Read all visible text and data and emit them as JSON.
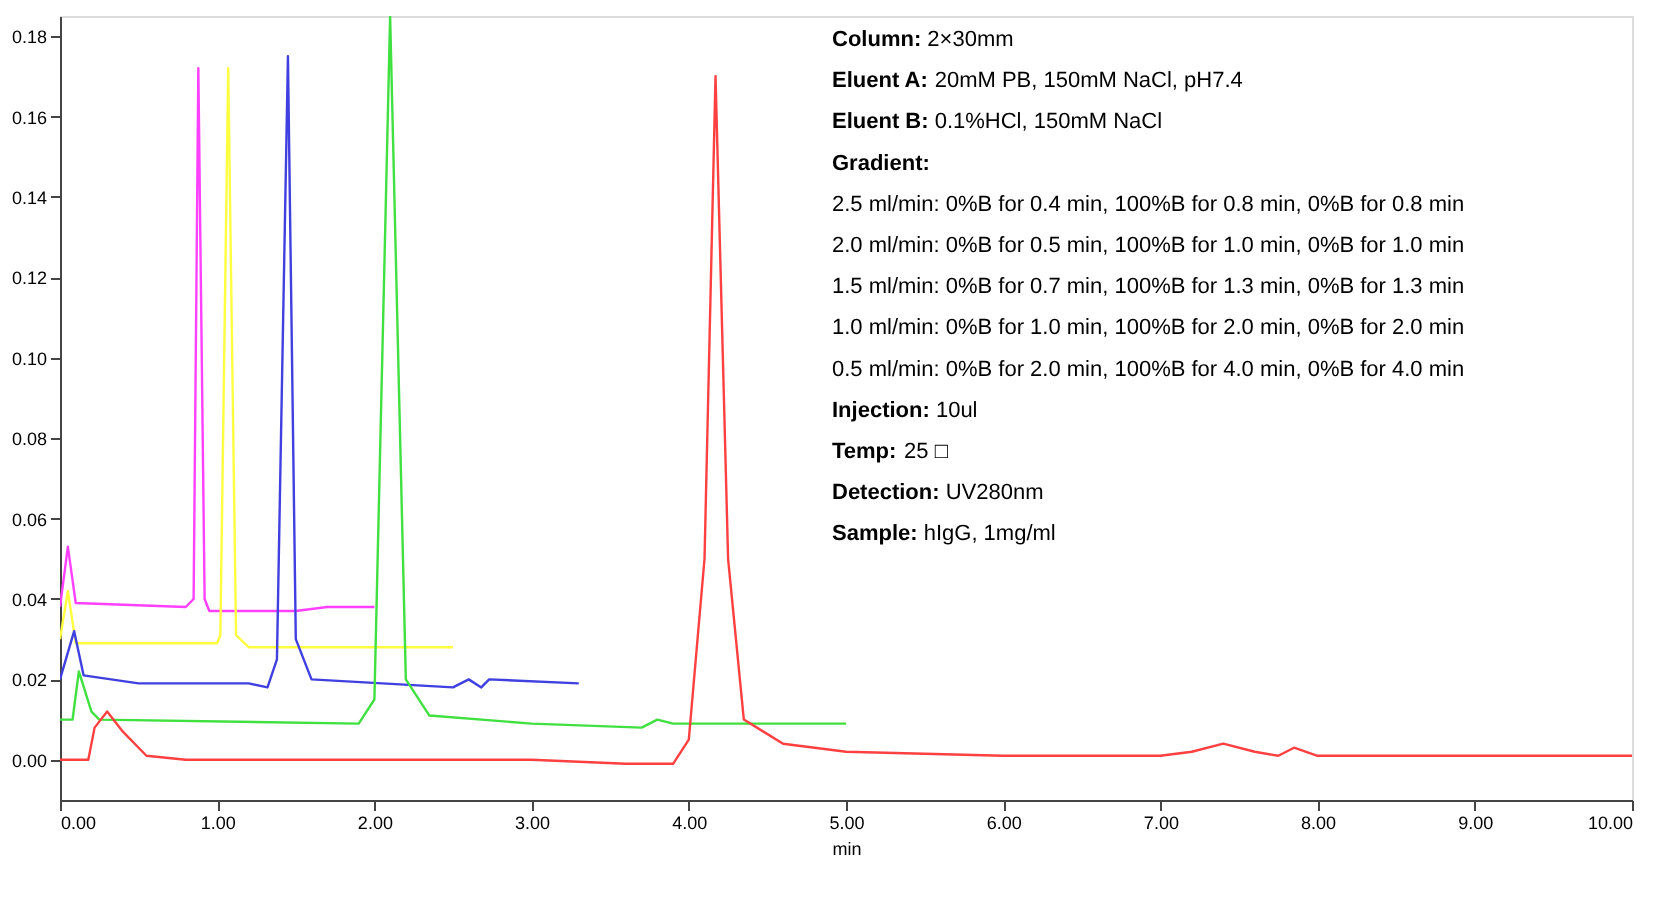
{
  "chart_data": {
    "type": "line",
    "xlabel": "min",
    "xlim": [
      0,
      10
    ],
    "ylim": [
      -0.01,
      0.185
    ],
    "xticks": [
      {
        "value": 0,
        "label": "0.00"
      },
      {
        "value": 1,
        "label": "1.00"
      },
      {
        "value": 2,
        "label": "2.00"
      },
      {
        "value": 3,
        "label": "3.00"
      },
      {
        "value": 4,
        "label": "4.00"
      },
      {
        "value": 5,
        "label": "5.00"
      },
      {
        "value": 6,
        "label": "6.00"
      },
      {
        "value": 7,
        "label": "7.00"
      },
      {
        "value": 8,
        "label": "8.00"
      },
      {
        "value": 9,
        "label": "9.00"
      },
      {
        "value": 10,
        "label": "10.00"
      }
    ],
    "yticks": [
      {
        "value": 0,
        "label": "0.00"
      },
      {
        "value": 0.02,
        "label": "0.02"
      },
      {
        "value": 0.04,
        "label": "0.04"
      },
      {
        "value": 0.06,
        "label": "0.06"
      },
      {
        "value": 0.08,
        "label": "0.08"
      },
      {
        "value": 0.1,
        "label": "0.10"
      },
      {
        "value": 0.12,
        "label": "0.12"
      },
      {
        "value": 0.14,
        "label": "0.14"
      },
      {
        "value": 0.16,
        "label": "0.16"
      },
      {
        "value": 0.18,
        "label": "0.18"
      }
    ],
    "grid": false,
    "marker": "none",
    "line_style": "solid",
    "series": [
      {
        "color": "#ff40ff",
        "x": [
          0,
          0.05,
          0.1,
          0.8,
          0.85,
          0.88,
          0.92,
          0.95,
          1.5,
          1.7,
          2.0
        ],
        "values": [
          0.038,
          0.053,
          0.039,
          0.038,
          0.04,
          0.172,
          0.04,
          0.037,
          0.037,
          0.038,
          0.038
        ]
      },
      {
        "color": "#ffff40",
        "x": [
          0,
          0.05,
          0.1,
          1.0,
          1.02,
          1.07,
          1.12,
          1.2,
          2.5
        ],
        "values": [
          0.03,
          0.042,
          0.029,
          0.029,
          0.031,
          0.172,
          0.031,
          0.028,
          0.028
        ]
      },
      {
        "color": "#4040e0",
        "x": [
          0,
          0.09,
          0.15,
          0.5,
          1.2,
          1.32,
          1.38,
          1.45,
          1.5,
          1.6,
          2.5,
          2.6,
          2.68,
          2.73,
          3.3
        ],
        "values": [
          0.02,
          0.032,
          0.021,
          0.019,
          0.019,
          0.018,
          0.025,
          0.175,
          0.03,
          0.02,
          0.018,
          0.02,
          0.018,
          0.02,
          0.019
        ]
      },
      {
        "color": "#40e040",
        "x": [
          0,
          0.08,
          0.12,
          0.2,
          0.25,
          1.9,
          2.0,
          2.1,
          2.2,
          2.35,
          3.0,
          3.7,
          3.8,
          3.9,
          5.0
        ],
        "values": [
          0.01,
          0.01,
          0.022,
          0.012,
          0.01,
          0.009,
          0.015,
          0.185,
          0.02,
          0.011,
          0.009,
          0.008,
          0.01,
          0.009,
          0.009
        ]
      },
      {
        "color": "#ff4040",
        "x": [
          0,
          0.18,
          0.22,
          0.3,
          0.4,
          0.55,
          0.8,
          3.0,
          3.6,
          3.9,
          4.0,
          4.1,
          4.17,
          4.25,
          4.35,
          4.6,
          5.0,
          6.0,
          7.0,
          7.2,
          7.4,
          7.6,
          7.75,
          7.85,
          8.0,
          10.0
        ],
        "values": [
          0.0,
          0.0,
          0.008,
          0.012,
          0.007,
          0.001,
          0.0,
          0.0,
          -0.001,
          -0.001,
          0.005,
          0.05,
          0.17,
          0.05,
          0.01,
          0.004,
          0.002,
          0.001,
          0.001,
          0.002,
          0.004,
          0.002,
          0.001,
          0.003,
          0.001,
          0.001
        ]
      }
    ],
    "annotations": [
      "Column: 2×30mm",
      "Eluent A: 20mM PB, 150mM NaCl, pH7.4",
      "Eluent B: 0.1%HCl, 150mM NaCl",
      "Gradient:",
      "2.5 ml/min: 0%B for 0.4 min, 100%B for 0.8 min, 0%B for 0.8 min",
      "2.0 ml/min: 0%B for 0.5 min, 100%B for 1.0 min, 0%B for 1.0 min",
      "1.5 ml/min: 0%B for 0.7 min, 100%B for 1.3 min, 0%B for 1.3 min",
      "1.0 ml/min: 0%B for 1.0 min, 100%B for 2.0 min, 0%B for 2.0 min",
      "0.5 ml/min: 0%B for 2.0 min, 100%B for 4.0 min, 0%B for 4.0 min",
      "Injection: 10ul",
      "Temp: 25 □",
      "Detection: UV280nm",
      "Sample: hIgG, 1mg/ml"
    ]
  }
}
